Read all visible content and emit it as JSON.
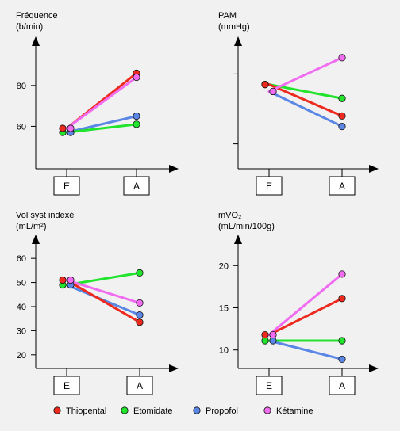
{
  "chart_data": [
    {
      "type": "line",
      "title_lines": [
        "Fréquence",
        "(b/min)"
      ],
      "x": [
        "E",
        "A"
      ],
      "ylim": [
        40,
        97
      ],
      "yticks": [
        {
          "v": 60,
          "label": "60"
        },
        {
          "v": 80,
          "label": "80"
        }
      ],
      "series": [
        {
          "name": "Thiopental",
          "values": [
            59,
            86
          ]
        },
        {
          "name": "Etomidate",
          "values": [
            57,
            61
          ]
        },
        {
          "name": "Propofol",
          "values": [
            57,
            65
          ]
        },
        {
          "name": "Kétamine",
          "values": [
            59,
            84
          ]
        }
      ]
    },
    {
      "type": "line",
      "title_lines": [
        "PAM",
        "(mmHg)"
      ],
      "x": [
        "E",
        "A"
      ],
      "ylim": [
        0,
        100
      ],
      "yticks": [
        {
          "v": 20,
          "label": ""
        },
        {
          "v": 50,
          "label": ""
        },
        {
          "v": 80,
          "label": ""
        }
      ],
      "series": [
        {
          "name": "Thiopental",
          "values": [
            71,
            44
          ]
        },
        {
          "name": "Etomidate",
          "values": [
            71,
            59
          ]
        },
        {
          "name": "Propofol",
          "values": [
            65,
            35
          ]
        },
        {
          "name": "Kétamine",
          "values": [
            65,
            94
          ]
        }
      ]
    },
    {
      "type": "line",
      "title_lines": [
        "Vol syst indexé",
        "(mL/m²)"
      ],
      "x": [
        "E",
        "A"
      ],
      "ylim": [
        15,
        64
      ],
      "yticks": [
        {
          "v": 20,
          "label": "20"
        },
        {
          "v": 30,
          "label": "30"
        },
        {
          "v": 40,
          "label": "40"
        },
        {
          "v": 50,
          "label": "50"
        },
        {
          "v": 60,
          "label": "60"
        }
      ],
      "series": [
        {
          "name": "Thiopental",
          "values": [
            51,
            33.5
          ]
        },
        {
          "name": "Etomidate",
          "values": [
            49,
            54
          ]
        },
        {
          "name": "Propofol",
          "values": [
            49,
            36.5
          ]
        },
        {
          "name": "Kétamine",
          "values": [
            51,
            41.5
          ]
        }
      ]
    },
    {
      "type": "line",
      "title_lines": [
        "mVO₂",
        "(mL/min/100g)"
      ],
      "x": [
        "E",
        "A"
      ],
      "ylim": [
        8,
        22
      ],
      "yticks": [
        {
          "v": 10,
          "label": "10"
        },
        {
          "v": 15,
          "label": "15"
        },
        {
          "v": 20,
          "label": "20"
        }
      ],
      "series": [
        {
          "name": "Thiopental",
          "values": [
            11.8,
            16.1
          ]
        },
        {
          "name": "Etomidate",
          "values": [
            11.1,
            11.1
          ]
        },
        {
          "name": "Propofol",
          "values": [
            11.1,
            8.9
          ]
        },
        {
          "name": "Kétamine",
          "values": [
            11.8,
            19
          ]
        }
      ]
    }
  ],
  "legend": [
    {
      "label": "Thiopental",
      "color": "#ee2a1f"
    },
    {
      "label": "Etomidate",
      "color": "#22e42d"
    },
    {
      "label": "Propofol",
      "color": "#5a86e6"
    },
    {
      "label": "Kétamine",
      "color": "#f16cf1"
    }
  ],
  "series_colors": {
    "Thiopental": "#ee2a1f",
    "Etomidate": "#22e42d",
    "Propofol": "#5a86e6",
    "Kétamine": "#f16cf1"
  },
  "draw_order": [
    "Propofol",
    "Etomidate",
    "Thiopental",
    "Kétamine"
  ]
}
